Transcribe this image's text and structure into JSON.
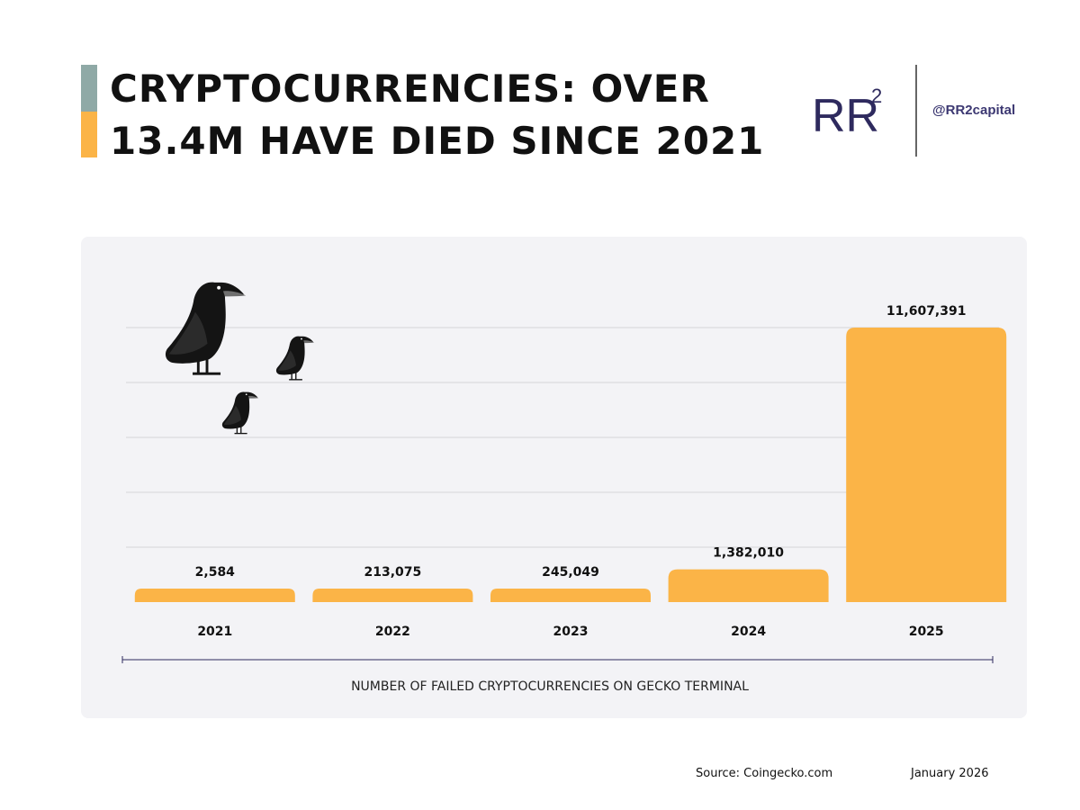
{
  "header": {
    "title_lines": [
      "CRYPTOCURRENCIES: OVER",
      "13.4M HAVE DIED SINCE 2021"
    ],
    "accent_colors": {
      "top": "#8fa9a6",
      "bottom": "#fbb447"
    }
  },
  "brand": {
    "logo_text": "RR",
    "logo_superscript": "2",
    "logo_color": "#2e2a5e",
    "handle": "@RR2capital"
  },
  "chart_data": {
    "type": "bar",
    "title": "",
    "categories": [
      "2021",
      "2022",
      "2023",
      "2024",
      "2025"
    ],
    "values": [
      2584,
      213075,
      245049,
      1382010,
      11607391
    ],
    "value_labels": [
      "2,584",
      "213,075",
      "245,049",
      "1,382,010",
      "11,607,391"
    ],
    "xlabel": "NUMBER OF FAILED CRYPTOCURRENCIES ON GECKO TERMINAL",
    "ylabel": "",
    "grid": true,
    "bar_color": "#fbb447",
    "decoration": "crows-icon"
  },
  "footer": {
    "source": "Source: Coingecko.com",
    "date": "January 2026"
  }
}
